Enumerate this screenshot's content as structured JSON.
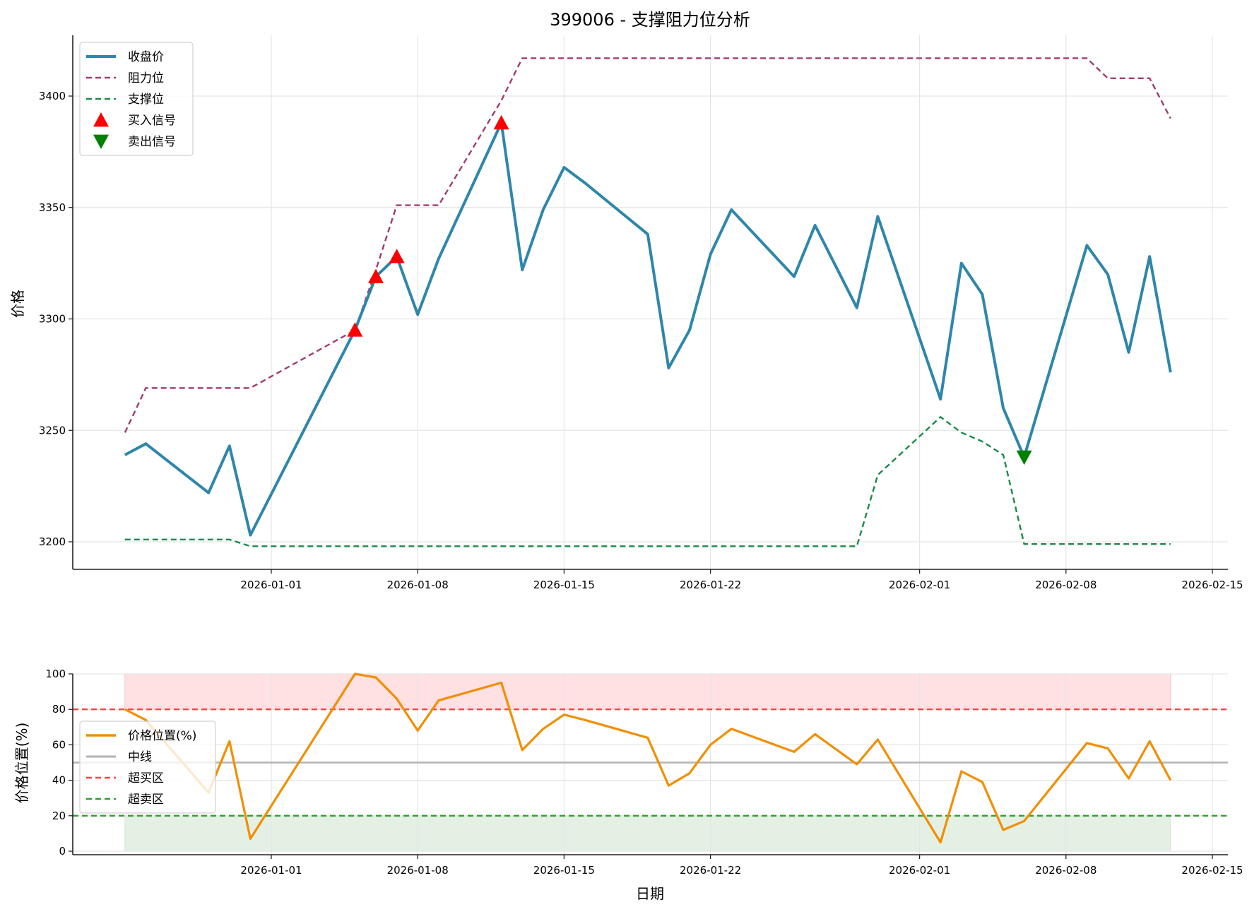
{
  "chart_data": [
    {
      "type": "line",
      "title": "399006 - 支撑阻力位分析",
      "xlabel": "",
      "ylabel": "价格",
      "ylim": [
        3187,
        3428
      ],
      "yticks": [
        3200,
        3250,
        3300,
        3350,
        3400
      ],
      "xticks": [
        "2026-01-01",
        "2026-01-08",
        "2026-01-15",
        "2026-01-22",
        "2026-02-01",
        "2026-02-08",
        "2026-02-15"
      ],
      "grid": true,
      "legend_position": "upper left",
      "x": [
        "2025-12-25",
        "2025-12-26",
        "2025-12-29",
        "2025-12-30",
        "2025-12-31",
        "2026-01-05",
        "2026-01-06",
        "2026-01-07",
        "2026-01-08",
        "2026-01-09",
        "2026-01-12",
        "2026-01-13",
        "2026-01-14",
        "2026-01-15",
        "2026-01-16",
        "2026-01-19",
        "2026-01-20",
        "2026-01-21",
        "2026-01-22",
        "2026-01-23",
        "2026-01-26",
        "2026-01-27",
        "2026-01-29",
        "2026-01-30",
        "2026-02-02",
        "2026-02-03",
        "2026-02-04",
        "2026-02-05",
        "2026-02-06",
        "2026-02-09",
        "2026-02-10",
        "2026-02-11",
        "2026-02-12",
        "2026-02-13"
      ],
      "series": [
        {
          "name": "收盘价",
          "style": "solid",
          "color": "#2e86ab",
          "values": [
            3239,
            3244,
            3222,
            3243,
            3203,
            3295,
            3319,
            3328,
            3302,
            3327,
            3388,
            3322,
            3349,
            3368,
            3361,
            3338,
            3278,
            3295,
            3329,
            3349,
            3319,
            3342,
            3305,
            3346,
            3264,
            3325,
            3311,
            3260,
            3238,
            3333,
            3320,
            3285,
            3328,
            3276
          ]
        },
        {
          "name": "阻力位",
          "style": "dashed",
          "color": "#a23b72",
          "values": [
            3249,
            3269,
            3269,
            3269,
            3269,
            3295,
            3322,
            3351,
            3351,
            3351,
            3398,
            3417,
            3417,
            3417,
            3417,
            3417,
            3417,
            3417,
            3417,
            3417,
            3417,
            3417,
            3417,
            3417,
            3417,
            3417,
            3417,
            3417,
            3417,
            3417,
            3408,
            3408,
            3408,
            3390
          ]
        },
        {
          "name": "支撑位",
          "style": "dashed",
          "color": "#1a8a4a",
          "values": [
            3201,
            3201,
            3201,
            3201,
            3198,
            3198,
            3198,
            3198,
            3198,
            3198,
            3198,
            3198,
            3198,
            3198,
            3198,
            3198,
            3198,
            3198,
            3198,
            3198,
            3198,
            3198,
            3198,
            3230,
            3256,
            3249,
            3245,
            3239,
            3199,
            3199,
            3199,
            3199,
            3199,
            3199
          ]
        }
      ],
      "markers": [
        {
          "name": "买入信号",
          "shape": "triangle-up",
          "color": "#ff0000",
          "points": [
            {
              "x": "2026-01-05",
              "y": 3295
            },
            {
              "x": "2026-01-06",
              "y": 3319
            },
            {
              "x": "2026-01-07",
              "y": 3328
            },
            {
              "x": "2026-01-12",
              "y": 3388
            }
          ]
        },
        {
          "name": "卖出信号",
          "shape": "triangle-down",
          "color": "#008000",
          "points": [
            {
              "x": "2026-02-06",
              "y": 3238
            }
          ]
        }
      ]
    },
    {
      "type": "line",
      "title": "",
      "xlabel": "日期",
      "ylabel": "价格位置(%)",
      "ylim": [
        0,
        100
      ],
      "yticks": [
        0,
        20,
        40,
        60,
        80,
        100
      ],
      "xticks": [
        "2026-01-01",
        "2026-01-08",
        "2026-01-15",
        "2026-01-22",
        "2026-02-01",
        "2026-02-08",
        "2026-02-15"
      ],
      "grid": true,
      "legend_position": "center left",
      "x": [
        "2025-12-25",
        "2025-12-26",
        "2025-12-29",
        "2025-12-30",
        "2025-12-31",
        "2026-01-05",
        "2026-01-06",
        "2026-01-07",
        "2026-01-08",
        "2026-01-09",
        "2026-01-12",
        "2026-01-13",
        "2026-01-14",
        "2026-01-15",
        "2026-01-16",
        "2026-01-19",
        "2026-01-20",
        "2026-01-21",
        "2026-01-22",
        "2026-01-23",
        "2026-01-26",
        "2026-01-27",
        "2026-01-29",
        "2026-01-30",
        "2026-02-02",
        "2026-02-03",
        "2026-02-04",
        "2026-02-05",
        "2026-02-06",
        "2026-02-09",
        "2026-02-10",
        "2026-02-11",
        "2026-02-12",
        "2026-02-13"
      ],
      "series": [
        {
          "name": "价格位置(%)",
          "style": "solid",
          "color": "#f18f01",
          "values": [
            80,
            74,
            33,
            62,
            7,
            100,
            98,
            86,
            68,
            85,
            95,
            57,
            69,
            77,
            74,
            64,
            37,
            44,
            60,
            69,
            56,
            66,
            49,
            63,
            5,
            45,
            39,
            12,
            17,
            61,
            58,
            41,
            62,
            40
          ]
        },
        {
          "name": "中线",
          "style": "solid",
          "color": "#b3b3b3",
          "values": [
            50
          ]
        },
        {
          "name": "超买区",
          "style": "dashed",
          "color": "#ff4040",
          "values": [
            80
          ]
        },
        {
          "name": "超卖区",
          "style": "dashed",
          "color": "#2ca02c",
          "values": [
            20
          ]
        }
      ],
      "bands": [
        {
          "name": "overbought-band",
          "from": 80,
          "to": 100,
          "color": "#ffe0e3"
        },
        {
          "name": "oversold-band",
          "from": 0,
          "to": 20,
          "color": "#e4f0e4"
        }
      ]
    }
  ]
}
